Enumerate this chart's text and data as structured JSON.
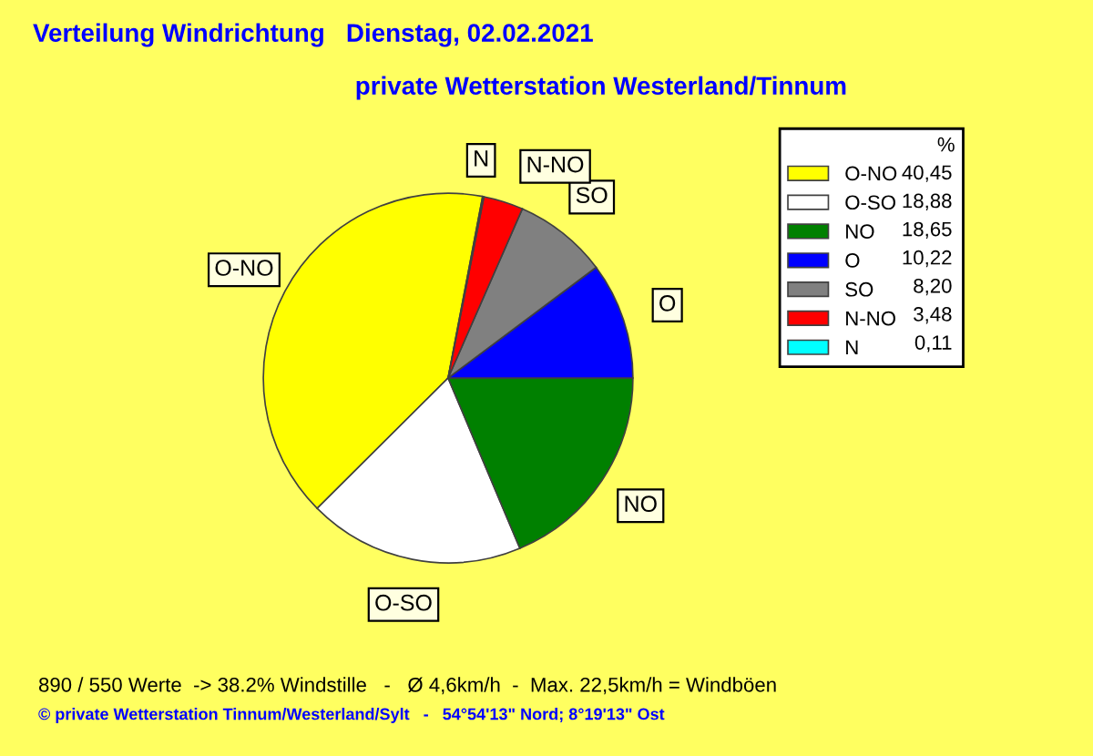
{
  "chart_data": {
    "type": "pie",
    "title": "Verteilung Windrichtung   Dienstag, 02.02.2021",
    "subtitle": "private Wetterstation Westerland/Tinnum",
    "categories": [
      "O-NO",
      "O-SO",
      "NO",
      "O",
      "SO",
      "N-NO",
      "N"
    ],
    "values": [
      40.45,
      18.88,
      18.65,
      10.22,
      8.2,
      3.48,
      0.11
    ],
    "value_labels": [
      "40,45",
      "18,88",
      "18,65",
      "10,22",
      "8,20",
      "3,48",
      "0,11"
    ],
    "colors": [
      "#ffff00",
      "#ffffff",
      "#008000",
      "#0000ff",
      "#808080",
      "#ff0000",
      "#00ffff"
    ],
    "legend": "right",
    "legend_title": "%",
    "annotations": [
      "890 / 550 Werte  -> 38.2% Windstille   -   Ø 4,6km/h  -  Max. 22,5km/h = Windböen",
      "© private Wetterstation Tinnum/Westerland/Sylt   -   54°54'13\" Nord; 8°19'13\" Ost"
    ]
  }
}
